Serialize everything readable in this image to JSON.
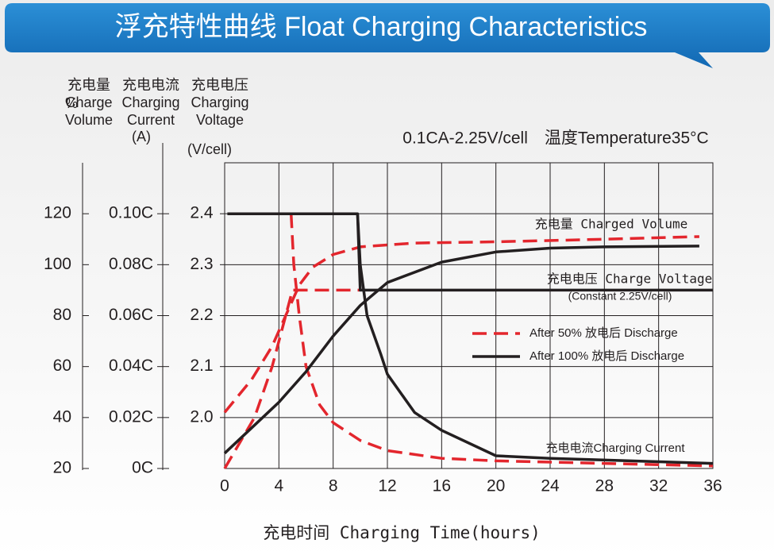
{
  "chart_data": {
    "type": "line",
    "title": "浮充特性曲线 Float Charging Characteristics",
    "condition": "0.1CA-2.25V/cell　温度Temperature35°C",
    "x_label": "充电时间 Charging Time(hours)",
    "axis_headers": [
      [
        "充电量",
        "Charge",
        "Volume"
      ],
      [
        "充电电流",
        "Charging",
        "Current"
      ],
      [
        "充电电压",
        "Charging",
        "Voltage"
      ]
    ],
    "axis_units": [
      "%",
      "(A)",
      "(V/cell)"
    ],
    "xlim": [
      0,
      36
    ],
    "xticks": [
      0,
      4,
      8,
      12,
      16,
      20,
      24,
      28,
      32,
      36
    ],
    "ylim": [
      20,
      140
    ],
    "yticks": [
      120,
      100,
      80,
      60,
      40,
      20
    ],
    "y2lim": [
      0,
      0.12
    ],
    "y2ticks": [
      {
        "value": 0.1,
        "label": "0.10C"
      },
      {
        "value": 0.08,
        "label": "0.08C"
      },
      {
        "value": 0.06,
        "label": "0.06C"
      },
      {
        "value": 0.04,
        "label": "0.04C"
      },
      {
        "value": 0.02,
        "label": "0.02C"
      },
      {
        "value": 0,
        "label": "0C"
      }
    ],
    "y3lim": [
      1.9,
      2.5
    ],
    "y3ticks": [
      2.4,
      2.3,
      2.2,
      2.1,
      {
        "value": 2.0,
        "label": "2.0"
      }
    ],
    "grid": true,
    "annotations": [
      "充电量 Charged Volume",
      "充电电压 Charge Voltage",
      "(Constant 2.25V/cell)",
      "充电电流Charging Current"
    ],
    "series": [
      {
        "name": "After 50% 放电后 Discharge",
        "color": "#e3262d",
        "dashed": true,
        "volume": {
          "x": [
            0,
            2,
            3.5,
            4.5,
            5.5,
            6.5,
            8,
            10,
            14,
            20,
            28,
            35
          ],
          "values": [
            42,
            55,
            68,
            80,
            92,
            99,
            104,
            107,
            108.5,
            109,
            110,
            111
          ]
        },
        "current": {
          "x": [
            4.9,
            5.1,
            5.5,
            6,
            7,
            8,
            10,
            12,
            16,
            20,
            28,
            36
          ],
          "values": [
            0.1,
            0.08,
            0.06,
            0.04,
            0.025,
            0.018,
            0.011,
            0.007,
            0.004,
            0.003,
            0.002,
            0.001
          ]
        },
        "voltage": {
          "x": [
            0,
            2.2,
            3.5,
            4.5,
            5,
            10
          ],
          "values": [
            1.9,
            2.0,
            2.1,
            2.2,
            2.25,
            2.25
          ]
        }
      },
      {
        "name": "After 100% 放电后 Discharge",
        "color": "#231f20",
        "dashed": false,
        "volume": {
          "x": [
            0,
            2,
            4,
            6,
            8,
            10,
            12,
            16,
            20,
            24,
            28,
            35
          ],
          "values": [
            26,
            36,
            46,
            58,
            72,
            84,
            93,
            101,
            105,
            106.5,
            107,
            107.3
          ]
        },
        "current": {
          "x": [
            9.8,
            10,
            10.5,
            11.5,
            12,
            14,
            16,
            20,
            24,
            36
          ],
          "values": [
            0.1,
            0.08,
            0.06,
            0.045,
            0.037,
            0.022,
            0.015,
            0.005,
            0.004,
            0.002
          ]
        },
        "voltage": {
          "x": [
            0.2,
            9.8,
            10,
            36
          ],
          "values": [
            2.4,
            2.4,
            2.25,
            2.25
          ]
        }
      }
    ]
  }
}
